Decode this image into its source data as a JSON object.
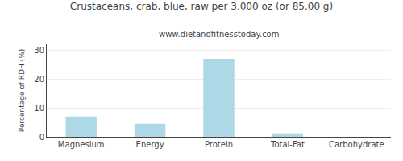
{
  "chart_data": {
    "type": "bar",
    "title": "Crustaceans, crab, blue, raw per 3.000 oz (or 85.00 g)",
    "subtitle": "www.dietandfitnesstoday.com",
    "categories": [
      "Magnesium",
      "Energy",
      "Protein",
      "Total-Fat",
      "Carbohydrate"
    ],
    "values": [
      7.0,
      4.5,
      27.0,
      1.2,
      0.0
    ],
    "color": "#add8e6",
    "ylabel": "Percentage of RDH (%)",
    "ylim": [
      0,
      32
    ],
    "yticks": [
      0,
      10,
      20,
      30
    ],
    "grid": true
  }
}
